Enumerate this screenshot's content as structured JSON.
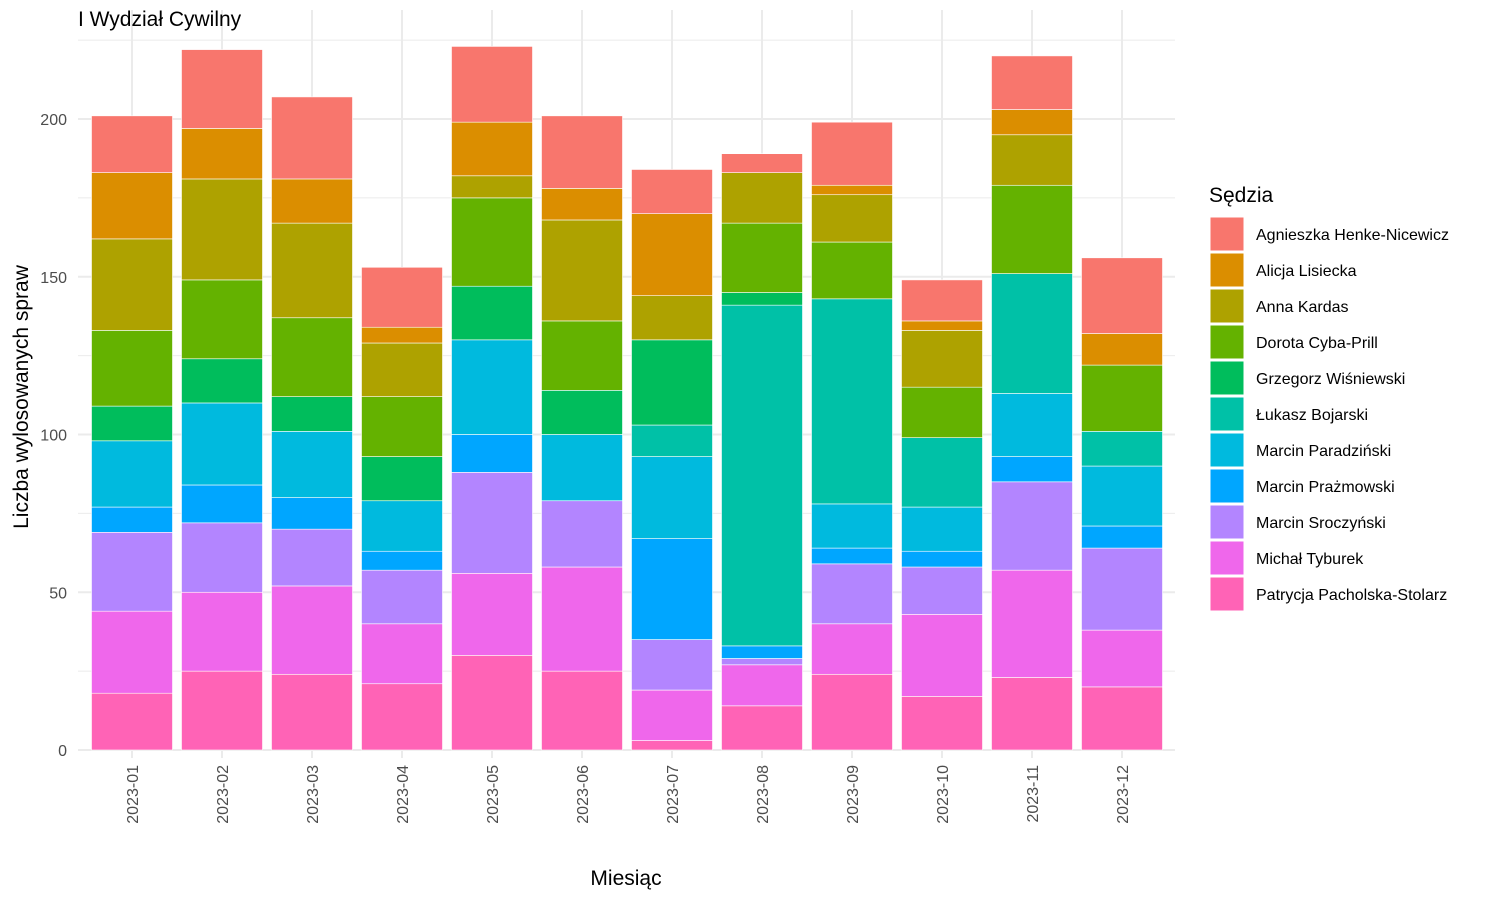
{
  "chart_data": {
    "type": "bar",
    "stacked": true,
    "title": "I Wydział Cywilny",
    "xlabel": "Miesiąc",
    "ylabel": "Liczba wylosowanych spraw",
    "ylim": [
      0,
      225
    ],
    "yticks": [
      0,
      50,
      100,
      150,
      200
    ],
    "grid": true,
    "legend_position": "right",
    "legend_title": "Sędzia",
    "categories": [
      "2023-01",
      "2023-02",
      "2023-03",
      "2023-04",
      "2023-05",
      "2023-06",
      "2023-07",
      "2023-08",
      "2023-09",
      "2023-10",
      "2023-11",
      "2023-12"
    ],
    "series": [
      {
        "name": "Agnieszka Henke-Nicewicz",
        "color": "#F8766D",
        "values": [
          18,
          25,
          26,
          19,
          24,
          23,
          14,
          6,
          20,
          13,
          17,
          24
        ]
      },
      {
        "name": "Alicja Lisiecka",
        "color": "#DB8E00",
        "values": [
          21,
          16,
          14,
          5,
          17,
          10,
          26,
          0,
          3,
          3,
          8,
          10
        ]
      },
      {
        "name": "Anna Kardas",
        "color": "#AEA200",
        "values": [
          29,
          32,
          30,
          17,
          7,
          32,
          14,
          16,
          15,
          18,
          16,
          0
        ]
      },
      {
        "name": "Dorota Cyba-Prill",
        "color": "#64B200",
        "values": [
          24,
          25,
          25,
          19,
          28,
          22,
          0,
          22,
          18,
          16,
          28,
          21
        ]
      },
      {
        "name": "Grzegorz Wiśniewski",
        "color": "#00BD5C",
        "values": [
          11,
          14,
          11,
          14,
          17,
          14,
          27,
          4,
          0,
          0,
          0,
          0
        ]
      },
      {
        "name": "Łukasz Bojarski",
        "color": "#00C1A7",
        "values": [
          0,
          0,
          0,
          0,
          0,
          0,
          10,
          108,
          65,
          22,
          38,
          11
        ]
      },
      {
        "name": "Marcin Paradziński",
        "color": "#00BADE",
        "values": [
          21,
          26,
          21,
          16,
          30,
          21,
          26,
          0,
          14,
          14,
          20,
          19
        ]
      },
      {
        "name": "Marcin Prażmowski",
        "color": "#00A6FF",
        "values": [
          8,
          12,
          10,
          6,
          12,
          0,
          32,
          4,
          5,
          5,
          8,
          7
        ]
      },
      {
        "name": "Marcin Sroczyński",
        "color": "#B385FF",
        "values": [
          25,
          22,
          18,
          17,
          32,
          21,
          16,
          2,
          19,
          15,
          28,
          26
        ]
      },
      {
        "name": "Michał Tyburek",
        "color": "#EF67EB",
        "values": [
          26,
          25,
          28,
          19,
          26,
          33,
          16,
          13,
          16,
          26,
          34,
          18
        ]
      },
      {
        "name": "Patrycja Pacholska-Stolarz",
        "color": "#FF63B6",
        "values": [
          18,
          25,
          24,
          21,
          30,
          25,
          3,
          14,
          24,
          17,
          23,
          20
        ]
      }
    ]
  }
}
